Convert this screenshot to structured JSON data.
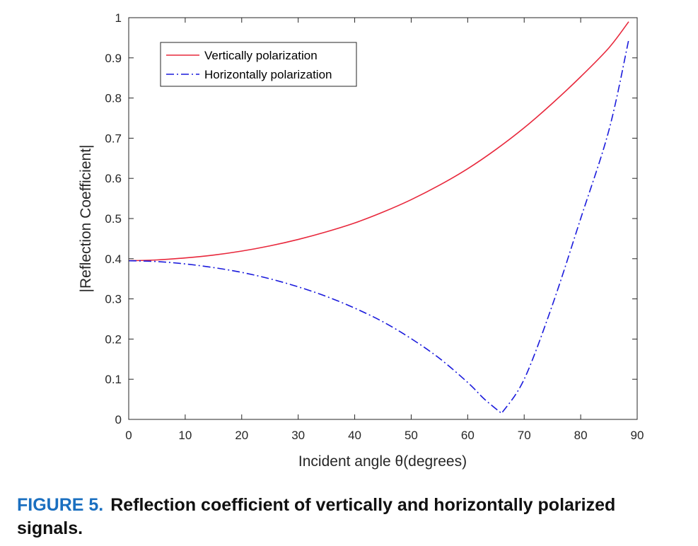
{
  "chart_data": {
    "type": "line",
    "xlabel": "Incident angle θ(degrees)",
    "ylabel": "|Reflection Coefficient|",
    "xlim": [
      0,
      90
    ],
    "ylim": [
      0,
      1
    ],
    "xticks": [
      0,
      10,
      20,
      30,
      40,
      50,
      60,
      70,
      80,
      90
    ],
    "yticks": [
      0,
      0.1,
      0.2,
      0.3,
      0.4,
      0.5,
      0.6,
      0.7,
      0.8,
      0.9,
      1
    ],
    "grid": false,
    "legend_position": "top-left",
    "series": [
      {
        "name": "Vertically polarization",
        "color": "#e8283c",
        "style": "solid",
        "x": [
          0,
          5,
          10,
          15,
          20,
          25,
          30,
          35,
          40,
          45,
          50,
          55,
          60,
          65,
          70,
          75,
          80,
          85,
          88.5
        ],
        "y": [
          0.395,
          0.397,
          0.402,
          0.409,
          0.419,
          0.432,
          0.448,
          0.467,
          0.489,
          0.516,
          0.547,
          0.583,
          0.624,
          0.672,
          0.726,
          0.787,
          0.853,
          0.925,
          0.99
        ]
      },
      {
        "name": "Horizontally polarization",
        "color": "#1a1adc",
        "style": "dashdot",
        "x": [
          0,
          5,
          10,
          15,
          20,
          25,
          30,
          35,
          40,
          45,
          50,
          55,
          60,
          63,
          66,
          70,
          75,
          80,
          85,
          88.5
        ],
        "y": [
          0.395,
          0.393,
          0.387,
          0.378,
          0.366,
          0.35,
          0.33,
          0.306,
          0.277,
          0.243,
          0.201,
          0.152,
          0.092,
          0.05,
          0.015,
          0.1,
          0.285,
          0.5,
          0.72,
          0.945
        ]
      }
    ]
  },
  "caption": {
    "label": "FIGURE 5.",
    "text": "Reflection coefficient of vertically and horizontally polarized signals.",
    "label_color": "#1a6fc0"
  }
}
